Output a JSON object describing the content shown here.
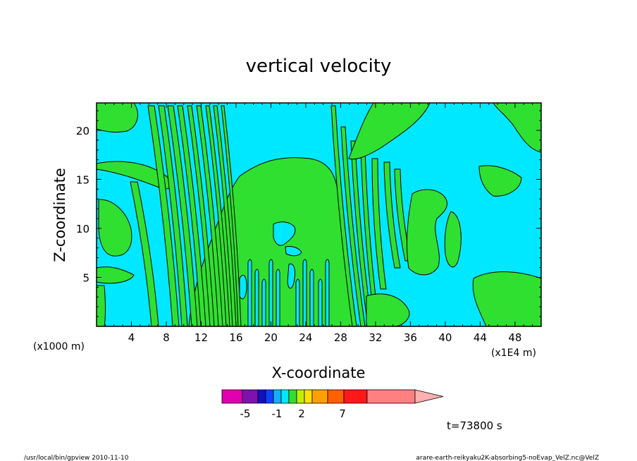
{
  "chart_data": {
    "type": "heatmap",
    "title": "vertical velocity",
    "xlabel": "X-coordinate",
    "ylabel": "Z-coordinate",
    "x_unit_note": "(x1E4 m)",
    "y_unit_note": "(x1000 m)",
    "x_ticks": [
      4,
      8,
      12,
      16,
      20,
      24,
      28,
      32,
      36,
      40,
      44,
      48
    ],
    "y_ticks": [
      5,
      10,
      15,
      20
    ],
    "xlim": [
      0,
      51
    ],
    "ylim": [
      0,
      22.8
    ],
    "colorbar": {
      "colors": [
        "#e000b0",
        "#8010b0",
        "#1010c0",
        "#1040ff",
        "#10b0ff",
        "#00e8ff",
        "#30e030",
        "#c0f000",
        "#ffe000",
        "#ffa000",
        "#ff6000",
        "#ff1818",
        "#ff8080",
        "#ffb0b0"
      ],
      "tick_labels": [
        "-5",
        "-1",
        "2",
        "7"
      ]
    },
    "visible_levels": {
      "cyan": "#00e8ff",
      "green": "#30e030"
    }
  },
  "time_label": "t=73800 s",
  "footer": {
    "left": "/usr/local/bin/gpview  2010-11-10",
    "right": "arare-earth-reikyaku2K-absorbing5-noEvap_VelZ.nc@VelZ"
  }
}
